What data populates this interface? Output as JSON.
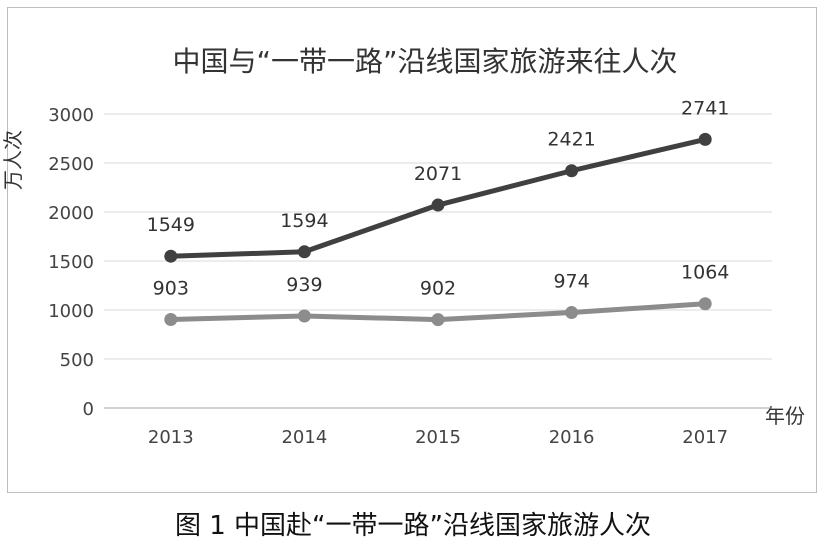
{
  "chart_data": {
    "type": "line",
    "title": "中国与“一带一路”沿线国家旅游来往人次",
    "ylabel": "万人次",
    "xlabel": "年份",
    "categories": [
      "2013",
      "2014",
      "2015",
      "2016",
      "2017"
    ],
    "ylim": [
      0,
      3000
    ],
    "yticks": [
      "0",
      "500",
      "1000",
      "1500",
      "2000",
      "2500",
      "3000"
    ],
    "grid": true,
    "legend": "none",
    "series": [
      {
        "values": [
          1549,
          1594,
          2071,
          2421,
          2741
        ],
        "labels": [
          "1549",
          "1594",
          "2071",
          "2421",
          "2741"
        ],
        "color": "#404040"
      },
      {
        "values": [
          903,
          939,
          902,
          974,
          1064
        ],
        "labels": [
          "903",
          "939",
          "902",
          "974",
          "1064"
        ],
        "color": "#8c8c8c"
      }
    ]
  },
  "caption": "图 1 中国赴“一带一路”沿线国家旅游人次"
}
